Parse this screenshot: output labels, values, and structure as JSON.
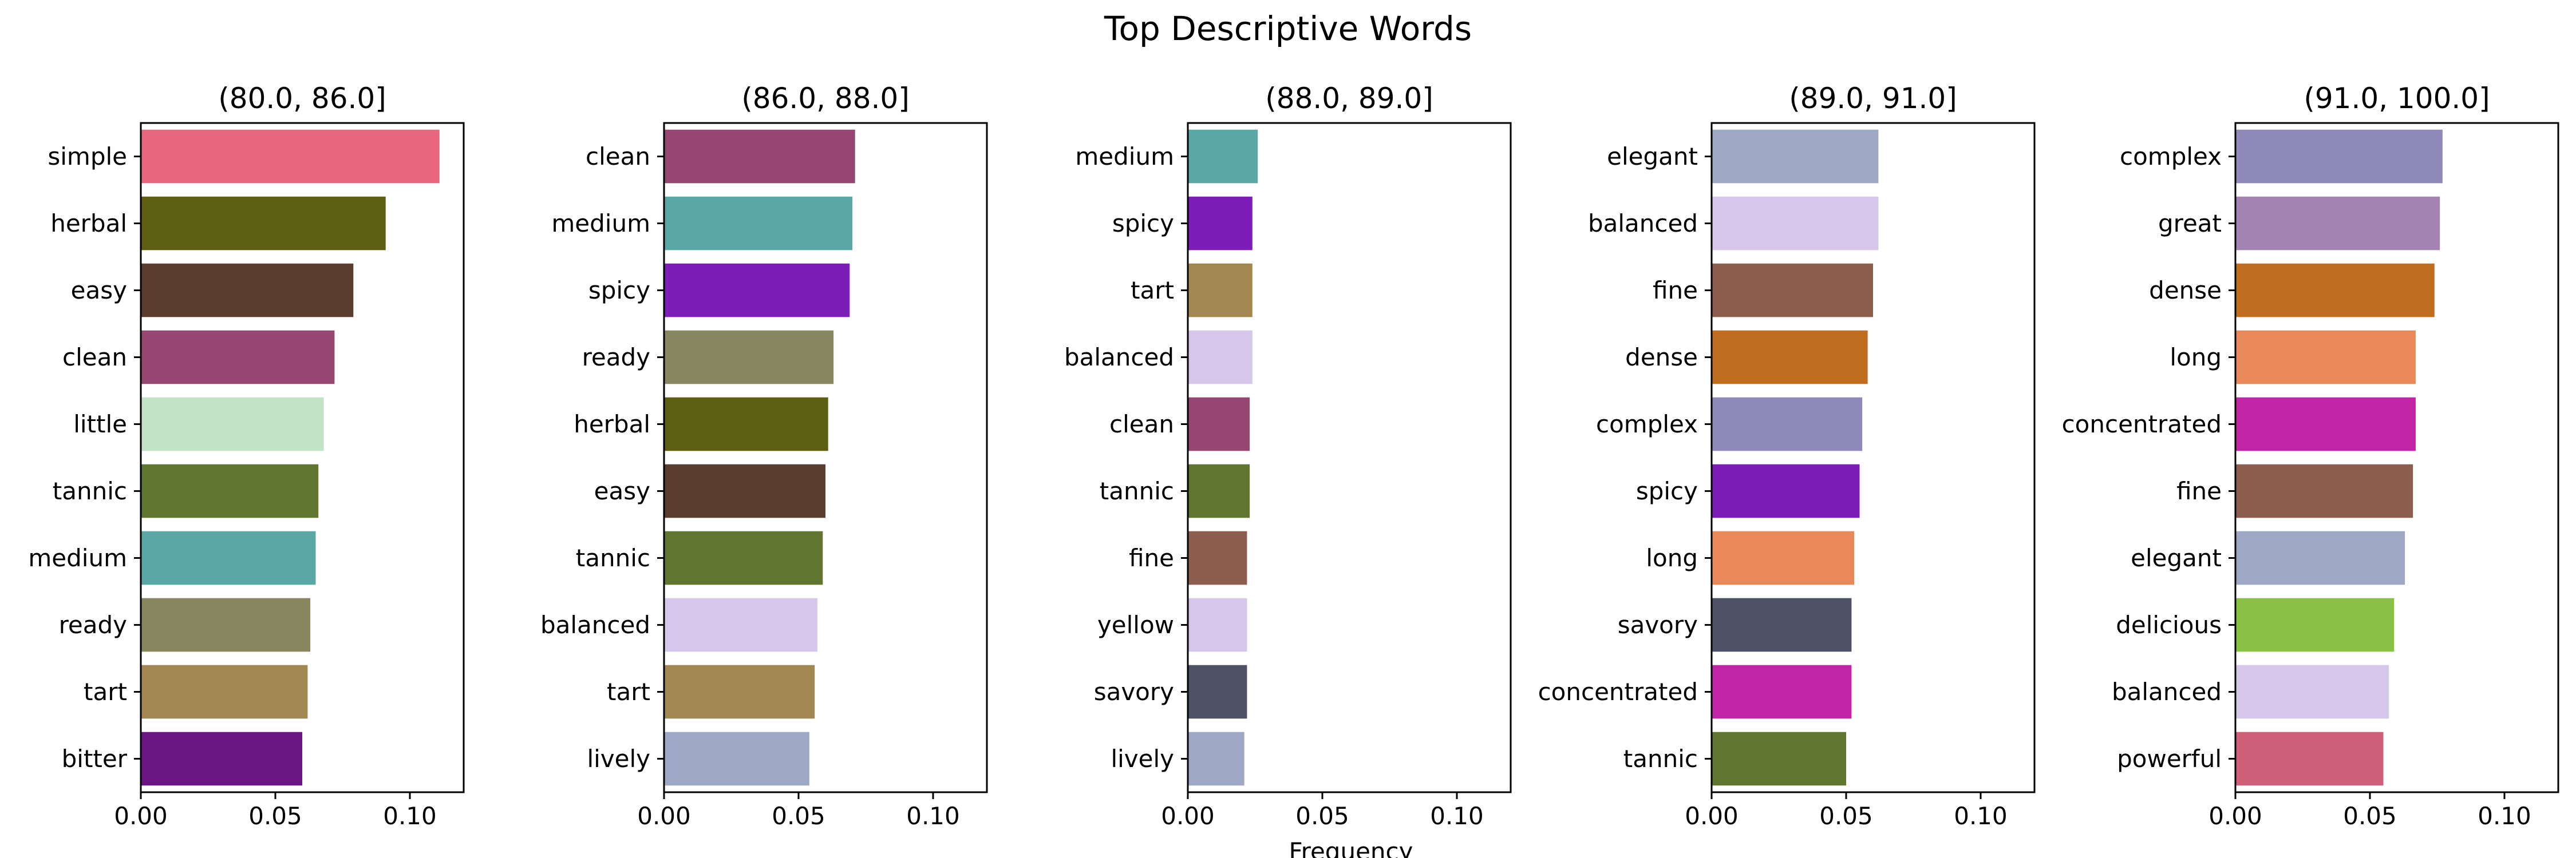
{
  "title": "Top Descriptive Words",
  "xlabel": "Frequency",
  "chart_data": [
    {
      "type": "bar",
      "orientation": "horizontal",
      "title": "(80.0, 86.0]",
      "categories": [
        "simple",
        "herbal",
        "easy",
        "clean",
        "little",
        "tannic",
        "medium",
        "ready",
        "tart",
        "bitter"
      ],
      "values": [
        0.111,
        0.091,
        0.079,
        0.072,
        0.068,
        0.066,
        0.065,
        0.063,
        0.062,
        0.06
      ],
      "colors": [
        "#e8677f",
        "#5d5e11",
        "#5b3d2f",
        "#954771",
        "#c2e3c5",
        "#5f7530",
        "#5aa8a5",
        "#86865f",
        "#a28850",
        "#6a1583"
      ],
      "xlim": [
        0,
        0.12
      ],
      "xticks": [
        "0.00",
        "0.05",
        "0.10"
      ]
    },
    {
      "type": "bar",
      "orientation": "horizontal",
      "title": "(86.0, 88.0]",
      "categories": [
        "clean",
        "medium",
        "spicy",
        "ready",
        "herbal",
        "easy",
        "tannic",
        "balanced",
        "tart",
        "lively"
      ],
      "values": [
        0.071,
        0.07,
        0.069,
        0.063,
        0.061,
        0.06,
        0.059,
        0.057,
        0.056,
        0.054
      ],
      "colors": [
        "#954771",
        "#5aa8a5",
        "#7d1db8",
        "#86865f",
        "#5d5e11",
        "#5b3d2f",
        "#5f7530",
        "#d6c6e9",
        "#a28850",
        "#9ea8c5"
      ],
      "xlim": [
        0,
        0.12
      ],
      "xticks": [
        "0.00",
        "0.05",
        "0.10"
      ]
    },
    {
      "type": "bar",
      "orientation": "horizontal",
      "title": "(88.0, 89.0]",
      "categories": [
        "medium",
        "spicy",
        "tart",
        "balanced",
        "clean",
        "tannic",
        "fine",
        "yellow",
        "savory",
        "lively"
      ],
      "values": [
        0.026,
        0.024,
        0.024,
        0.024,
        0.023,
        0.023,
        0.022,
        0.022,
        0.022,
        0.021
      ],
      "colors": [
        "#5aa8a5",
        "#7d1db8",
        "#a28850",
        "#d6c6e9",
        "#954771",
        "#5f7530",
        "#8d5d4d",
        "#d6c6e9",
        "#4d5166",
        "#9ea8c5"
      ],
      "xlim": [
        0,
        0.12
      ],
      "xticks": [
        "0.00",
        "0.05",
        "0.10"
      ]
    },
    {
      "type": "bar",
      "orientation": "horizontal",
      "title": "(89.0, 91.0]",
      "categories": [
        "elegant",
        "balanced",
        "fine",
        "dense",
        "complex",
        "spicy",
        "long",
        "savory",
        "concentrated",
        "tannic"
      ],
      "values": [
        0.062,
        0.062,
        0.06,
        0.058,
        0.056,
        0.055,
        0.053,
        0.052,
        0.052,
        0.05
      ],
      "colors": [
        "#9ea8c5",
        "#d6c6e9",
        "#8d5d4d",
        "#c06d1f",
        "#908ab9",
        "#7d1db8",
        "#e9895a",
        "#4d5166",
        "#c224a6",
        "#5f7530"
      ],
      "xlim": [
        0,
        0.12
      ],
      "xticks": [
        "0.00",
        "0.05",
        "0.10"
      ]
    },
    {
      "type": "bar",
      "orientation": "horizontal",
      "title": "(91.0, 100.0]",
      "categories": [
        "complex",
        "great",
        "dense",
        "long",
        "concentrated",
        "fine",
        "elegant",
        "delicious",
        "balanced",
        "powerful"
      ],
      "values": [
        0.077,
        0.076,
        0.074,
        0.067,
        0.067,
        0.066,
        0.063,
        0.059,
        0.057,
        0.055
      ],
      "colors": [
        "#908ab9",
        "#a283b1",
        "#c06d1f",
        "#e9895a",
        "#c224a6",
        "#8d5d4d",
        "#9ea8c5",
        "#89c144",
        "#d6c6e9",
        "#cd5f79"
      ],
      "xlim": [
        0,
        0.12
      ],
      "xticks": [
        "0.00",
        "0.05",
        "0.10"
      ]
    }
  ]
}
